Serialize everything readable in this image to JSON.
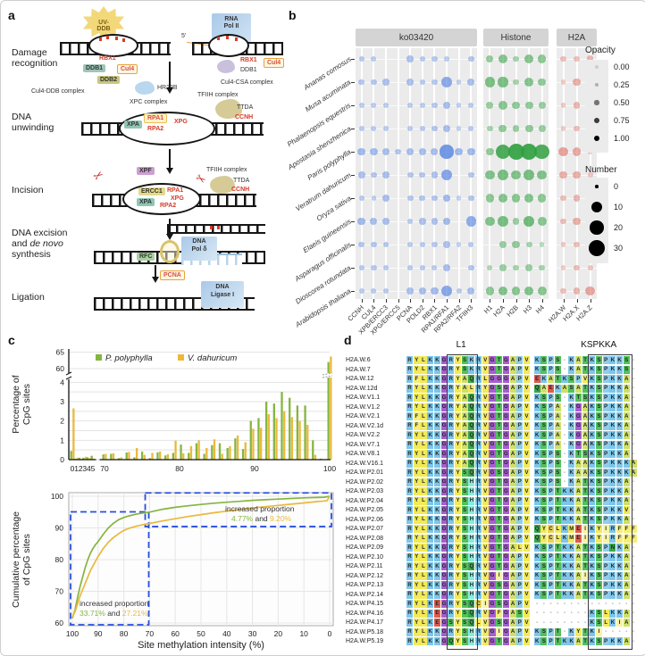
{
  "panel_letters": {
    "a": "a",
    "b": "b",
    "c": "c",
    "d": "d"
  },
  "panel_a": {
    "stages": {
      "damage": "Damage recognition",
      "unwinding": "DNA unwinding",
      "incision": "Incision",
      "excision_line1": "DNA excision",
      "excision_and": "and",
      "excision_denovo": "de novo",
      "excision_line3": "synthesis",
      "ligation": "Ligation"
    },
    "labels": {
      "uv1": "UV-",
      "uv2": "DDB",
      "rna1": "RNA",
      "rna2": "Pol II",
      "five_prime": "5'",
      "rbx1": "RBX1",
      "ddb1": "DDB1",
      "cul4": "Cul4",
      "ddb2": "DDB2",
      "cul4_ddb": "Cul4-DDB complex",
      "hr23b": "HR23B",
      "xpc": "XPC complex",
      "cul4_csa": "Cul4-CSA complex",
      "tfiih": "TFIIH complex",
      "ttda": "TTDA",
      "ccnh": "CCNH",
      "xpa": "XPA",
      "rpa1": "RPA1",
      "rpa2": "RPA2",
      "xpg": "XPG",
      "xpf": "XPF",
      "ercc1": "ERCC1",
      "rfc": "RFC",
      "pol_delta_1": "DNA",
      "pol_delta_2": "Pol δ",
      "pcna": "PCNA",
      "ligase_1": "DNA",
      "ligase_2": "Ligase I"
    }
  },
  "panel_b": {
    "facets": [
      {
        "key": "ko",
        "label": "ko03420",
        "color": "#4f7fe0",
        "genes": [
          "CCNH",
          "CUL4",
          "XPB/ERCC3",
          "XPG/ERCC5",
          "PCNA",
          "POLD2",
          "RBX1",
          "RPA1/RFA1",
          "RPA2/RFA2",
          "TFIIH3"
        ]
      },
      {
        "key": "hist",
        "label": "Histone",
        "color": "#2f9e3f",
        "genes": [
          "H1",
          "H2A",
          "H2B",
          "H3",
          "H4"
        ]
      },
      {
        "key": "h2a",
        "label": "H2A",
        "color": "#dc6a5d",
        "genes": [
          "H2A.W",
          "H2A.X",
          "H2A.Z"
        ]
      }
    ],
    "species": [
      "Ananas comosus",
      "Musa acuminata",
      "Phalaenopsis equestris",
      "Apostasia shenzhenica",
      "Paris polyphylla",
      "Veratrum dahuricum",
      "Oryza sativa",
      "Elaeis guineensis",
      "Asparagus officinalis",
      "Dioscorea rotundata",
      "Arabidopsis thaliana"
    ],
    "cells": {
      "ko": [
        [
          6,
          5,
          0,
          0,
          8,
          6,
          6,
          4,
          0,
          7
        ],
        [
          7,
          7,
          8,
          0,
          8,
          6,
          6,
          17,
          4,
          9
        ],
        [
          5,
          5,
          5,
          0,
          5,
          5,
          6,
          9,
          4,
          6
        ],
        [
          5,
          5,
          5,
          0,
          5,
          6,
          7,
          9,
          3,
          6
        ],
        [
          11,
          10,
          9,
          7,
          9,
          9,
          9,
          24,
          11,
          11
        ],
        [
          8,
          7,
          9,
          0,
          7,
          7,
          8,
          19,
          0,
          7
        ],
        [
          6,
          4,
          9,
          0,
          7,
          7,
          7,
          11,
          3,
          7
        ],
        [
          11,
          9,
          9,
          0,
          6,
          8,
          8,
          11,
          0,
          16
        ],
        [
          7,
          7,
          7,
          0,
          5,
          6,
          6,
          8,
          3,
          6
        ],
        [
          6,
          6,
          6,
          0,
          6,
          6,
          5,
          9,
          0,
          7
        ],
        [
          5,
          5,
          6,
          0,
          8,
          9,
          10,
          18,
          5,
          9
        ]
      ],
      "hist": [
        [
          10,
          14,
          7,
          14,
          12
        ],
        [
          16,
          16,
          7,
          14,
          11
        ],
        [
          9,
          13,
          11,
          11,
          9
        ],
        [
          7,
          11,
          9,
          11,
          9
        ],
        [
          11,
          27,
          30,
          30,
          27
        ],
        [
          15,
          17,
          15,
          17,
          15
        ],
        [
          12,
          14,
          13,
          14,
          12
        ],
        [
          15,
          17,
          9,
          19,
          13
        ],
        [
          0,
          9,
          11,
          7,
          3
        ],
        [
          5,
          9,
          7,
          9,
          7
        ],
        [
          12,
          15,
          13,
          15,
          13
        ]
      ],
      "h2a": [
        [
          6,
          6,
          9
        ],
        [
          3,
          11,
          13
        ],
        [
          4,
          9,
          7
        ],
        [
          3,
          7,
          5
        ],
        [
          15,
          13,
          3
        ],
        [
          11,
          11,
          5
        ],
        [
          7,
          9,
          7
        ],
        [
          7,
          11,
          11
        ],
        [
          4,
          7,
          5
        ],
        [
          3,
          7,
          5
        ],
        [
          6,
          9,
          14
        ]
      ]
    },
    "legend": {
      "opacity_title": "Opacity",
      "opacity_values": [
        "0.00",
        "0.25",
        "0.50",
        "0.75",
        "1.00"
      ],
      "number_title": "Number",
      "number_values": [
        "0",
        "10",
        "20",
        "30"
      ]
    }
  },
  "chart_data": [
    {
      "type": "bar",
      "id": "methylation-histogram",
      "ylabel_line1": "Percentage of",
      "ylabel_line2": "CpG sites",
      "legend": [
        {
          "name": "P. polyphylla",
          "color": "#85b540"
        },
        {
          "name": "V. dahuricum",
          "color": "#eab93c"
        }
      ],
      "y_ticks_lower": [
        0,
        1,
        2,
        3,
        4
      ],
      "y_ticks_upper": [
        60,
        65
      ],
      "x_ticks_low": [
        0,
        1,
        2,
        3,
        4,
        5
      ],
      "x_ticks_high": [
        70,
        80,
        90,
        100
      ],
      "axis_break_y": [
        4.3,
        57
      ],
      "low_bins": {
        "x": [
          0,
          1,
          2,
          3,
          4,
          5
        ],
        "P_polyphylla": [
          0.45,
          0.05,
          0.1,
          0.1,
          0.12,
          0.2
        ],
        "V_dahuricum": [
          2.65,
          0.1,
          0.05,
          0.15,
          0.08,
          0.05
        ]
      },
      "high_bins": {
        "x_start": 70,
        "x_end": 100,
        "P_polyphylla": [
          0.27,
          0.3,
          0.08,
          0.37,
          0.12,
          0.42,
          0.08,
          0.38,
          0.22,
          0.35,
          0.78,
          0.35,
          0.85,
          0.3,
          0.75,
          0.85,
          0.6,
          1.1,
          0.55,
          2.0,
          2.15,
          3.0,
          2.9,
          3.5,
          3.2,
          2.8,
          2.8,
          1.0,
          0.05,
          62.0
        ],
        "V_dahuricum": [
          0.3,
          0.33,
          0.12,
          0.4,
          0.6,
          0.25,
          0.35,
          0.42,
          0.28,
          0.98,
          0.33,
          0.7,
          1.0,
          0.6,
          1.05,
          0.3,
          0.7,
          1.25,
          0.9,
          1.6,
          1.65,
          2.35,
          2.15,
          2.5,
          2.2,
          2.0,
          1.8,
          0.25,
          0.02,
          63.7
        ]
      }
    },
    {
      "type": "line",
      "id": "cumulative-methylation",
      "ylabel_line1": "Cumulative percentage",
      "ylabel_line2": "of  CpG sites",
      "xlabel": "Site methylation intensity (%)",
      "x_ticks": [
        100,
        90,
        80,
        70,
        60,
        50,
        40,
        30,
        20,
        10,
        0
      ],
      "y_ticks": [
        60,
        70,
        80,
        90,
        100
      ],
      "x_reversed": true,
      "series": [
        {
          "name": "P. polyphylla",
          "color": "#85b540",
          "points": [
            [
              100,
              61.5
            ],
            [
              99,
              64
            ],
            [
              98,
              68
            ],
            [
              97,
              71.5
            ],
            [
              96,
              74.5
            ],
            [
              95,
              77.5
            ],
            [
              94,
              80
            ],
            [
              93,
              82
            ],
            [
              92,
              83.5
            ],
            [
              91,
              84.7
            ],
            [
              90,
              85.7
            ],
            [
              88,
              88
            ],
            [
              86,
              90
            ],
            [
              84,
              91.5
            ],
            [
              82,
              92.6
            ],
            [
              80,
              93.3
            ],
            [
              78,
              93.8
            ],
            [
              75,
              94.4
            ],
            [
              72,
              94.8
            ],
            [
              70,
              95
            ],
            [
              65,
              95.9
            ],
            [
              60,
              96.5
            ],
            [
              55,
              97
            ],
            [
              50,
              97.4
            ],
            [
              45,
              97.8
            ],
            [
              40,
              98.1
            ],
            [
              35,
              98.4
            ],
            [
              30,
              98.7
            ],
            [
              25,
              98.9
            ],
            [
              20,
              99.1
            ],
            [
              15,
              99.3
            ],
            [
              10,
              99.5
            ],
            [
              5,
              99.6
            ],
            [
              2,
              99.7
            ],
            [
              0,
              100
            ]
          ]
        },
        {
          "name": "V. dahuricum",
          "color": "#eab93c",
          "points": [
            [
              100,
              62
            ],
            [
              99,
              63.5
            ],
            [
              98,
              66
            ],
            [
              97,
              68.5
            ],
            [
              96,
              70.5
            ],
            [
              95,
              72.5
            ],
            [
              94,
              74.5
            ],
            [
              93,
              76.5
            ],
            [
              92,
              78
            ],
            [
              91,
              79.5
            ],
            [
              90,
              81
            ],
            [
              88,
              83.5
            ],
            [
              86,
              85.5
            ],
            [
              84,
              87
            ],
            [
              82,
              88.2
            ],
            [
              80,
              89.2
            ],
            [
              78,
              89.9
            ],
            [
              75,
              90.6
            ],
            [
              72,
              91.1
            ],
            [
              70,
              91.4
            ],
            [
              65,
              92.2
            ],
            [
              60,
              92.9
            ],
            [
              55,
              93.6
            ],
            [
              50,
              94.2
            ],
            [
              45,
              94.8
            ],
            [
              40,
              95.3
            ],
            [
              35,
              95.8
            ],
            [
              30,
              96.3
            ],
            [
              25,
              96.7
            ],
            [
              20,
              97.1
            ],
            [
              15,
              97.5
            ],
            [
              10,
              97.9
            ],
            [
              5,
              98.3
            ],
            [
              2,
              98.5
            ],
            [
              1,
              98.6
            ],
            [
              0,
              100
            ]
          ]
        }
      ],
      "annotations": [
        {
          "prefix": "increased proportion",
          "green": "33.71%",
          "mid": "and",
          "orange": "27.21%"
        },
        {
          "prefix": "increased proportion",
          "green": "4.77%",
          "mid": "and",
          "orange": "9.20%"
        }
      ],
      "boxes": [
        {
          "x1": 100,
          "x2": 71,
          "y1": 60,
          "y2": 94.5
        },
        {
          "x1": 71,
          "x2": 0,
          "y1": 91,
          "y2": 100.5
        }
      ],
      "box_color": "#2b50dd"
    }
  ],
  "panel_d": {
    "headers": {
      "l1": "L1",
      "kspkka": "KSPKKA"
    },
    "box_cols": {
      "l1": [
        6,
        9
      ],
      "kspkka": [
        26,
        31
      ]
    },
    "gap_after_col": 17,
    "residue_colors": {
      "R": "#7dc6ea",
      "K": "#7dc6ea",
      "H": "#83eede",
      "E": "#e05a4e",
      "D": "#e05a4e",
      "S": "#52c15b",
      "T": "#52c15b",
      "Q": "#3aa84c",
      "N": "#3aa84c",
      "G": "#a65fd0",
      "P": "#8fcdec",
      "A": "#cfe06a",
      "V": "#f2ea58",
      "L": "#f2ea58",
      "I": "#f7f3a0",
      "F": "#f5ee7a",
      "Y": "#f2ea58",
      "M": "#f2ea58",
      "C": "#e8d25a",
      "W": "#f2ea58",
      "-": "#ffffff"
    },
    "rows": [
      {
        "name": "H2A.W.6",
        "seq": "RYLKKGRYSKRVGTGAPVKSPS-KATKSPKKS-"
      },
      {
        "name": "H2A.W.7",
        "seq": "RYLKKGRYSKRVGTGAPVKSPS-KATKSPKKS-"
      },
      {
        "name": "H2A.W.12",
        "seq": "RFLKKGRYAQRLGGGAPVEKATKSPVKSPKKA-"
      },
      {
        "name": "H2A.W.12d",
        "seq": "RYLKKGRYALRYGSGAPVQAEKASATKSPKKA-"
      },
      {
        "name": "H2A.W.V1.1",
        "seq": "RYLKKGRYAQRVGTGAPVKSPS-KTSKSPKKA-"
      },
      {
        "name": "H2A.W.V1.2",
        "seq": "RYLKKGRYAQRVGTGAPVKSPA-KGAKSPKKA-"
      },
      {
        "name": "H2A.W.V2.1",
        "seq": "RFLKKGRYAQRVGTGAPVKSPA-KGAKSPKKA-"
      },
      {
        "name": "H2A.W.V2.1d",
        "seq": "RFLKKGRYAQRVGTGAPVKSPA-KGAKSPKKA-"
      },
      {
        "name": "H2A.W.V2.2",
        "seq": "RYLKKGRYAQRVGTGAPVKSPA-KGAKSPKKA-"
      },
      {
        "name": "H2A.W.V7.1",
        "seq": "RYLKKGRYAQRVGTGAPVKSPA-KGAKSPKKA-"
      },
      {
        "name": "H2A.W.V8.1",
        "seq": "RYLKKGRYAQRVGTGAPVKSPS-KTSKSPKKA-"
      },
      {
        "name": "H2A.W.V16.1",
        "seq": "RYLKKGRYAQRVGTGAPVKSPS-KAAKSPKKKA"
      },
      {
        "name": "H2A.W.P2.01",
        "seq": "RYLKKGRYSQRVGSGAPVKSPS-KAAKSPKKKA"
      },
      {
        "name": "H2A.W.P2.02",
        "seq": "RYLKKGRYSHRVGTGAPVKSPS-KATKSPKKA-"
      },
      {
        "name": "H2A.W.P2.03",
        "seq": "RYLKKGRYSHRVGTGAPVKSPTKKATKSPKKA-"
      },
      {
        "name": "H2A.W.P2.04",
        "seq": "RYLKKGRYSHRVGTGAPVKSPTKKATKSPKKA-"
      },
      {
        "name": "H2A.W.P2.05",
        "seq": "RYLKKGRYSHRVGTGAPVKSPTKKATKSPKKV-"
      },
      {
        "name": "H2A.W.P2.06",
        "seq": "RYLKKGRYSHRVGTGAPVKSPTKKATKSPKKA-"
      },
      {
        "name": "H2A.W.P2.07",
        "seq": "RYLKKGRYSHRVGTGAPVQYCLKMEIKYIRFFF"
      },
      {
        "name": "H2A.W.P2.08",
        "seq": "RYLKKGRYSHRVGTGAPVQYCLKMEIKYIRFFF"
      },
      {
        "name": "H2A.W.P2.09",
        "seq": "RYLKKGRYSHRVGTGALVKSPTKKATKSPNKA-"
      },
      {
        "name": "H2A.W.P2.10",
        "seq": "RYLKKGRYSHRVGTGAPVKSPTKKATKSPKKA-"
      },
      {
        "name": "H2A.W.P2.11",
        "seq": "RYLKKGRYSQRVGTGAPVKSPTKKATKSPKKA-"
      },
      {
        "name": "H2A.W.P2.12",
        "seq": "RYLKKGRYSHRVGIGAPVKSPTKKAIKSPKKA-"
      },
      {
        "name": "H2A.W.P2.13",
        "seq": "RYLKKGRYSHRVGSGAPVKSPTKKATKSPKKA-"
      },
      {
        "name": "H2A.W.P2.14",
        "seq": "RYLKKGRYSHRVGTGAPVKSPTKKATKSPKKA-"
      },
      {
        "name": "H2A.W.P4.15",
        "seq": "RYLKEGRYSQCIGSGAPV---------------"
      },
      {
        "name": "H2A.W.P4.16",
        "seq": "RYLKEGRYSQRVGFGASV--------KSLKKA-"
      },
      {
        "name": "H2A.W.P4.17",
        "seq": "RYLKEGSYSQLVGSGAPV--------KSLKIA-"
      },
      {
        "name": "H2A.W.P5.18",
        "seq": "RYLKKGRYSHRVGIGAPVKSPT-KYTKI-----"
      },
      {
        "name": "H2A.W.P5.19",
        "seq": "RYLKKGQYSHRVGTGAPVKSPTKKATKSPKKA-"
      }
    ]
  }
}
